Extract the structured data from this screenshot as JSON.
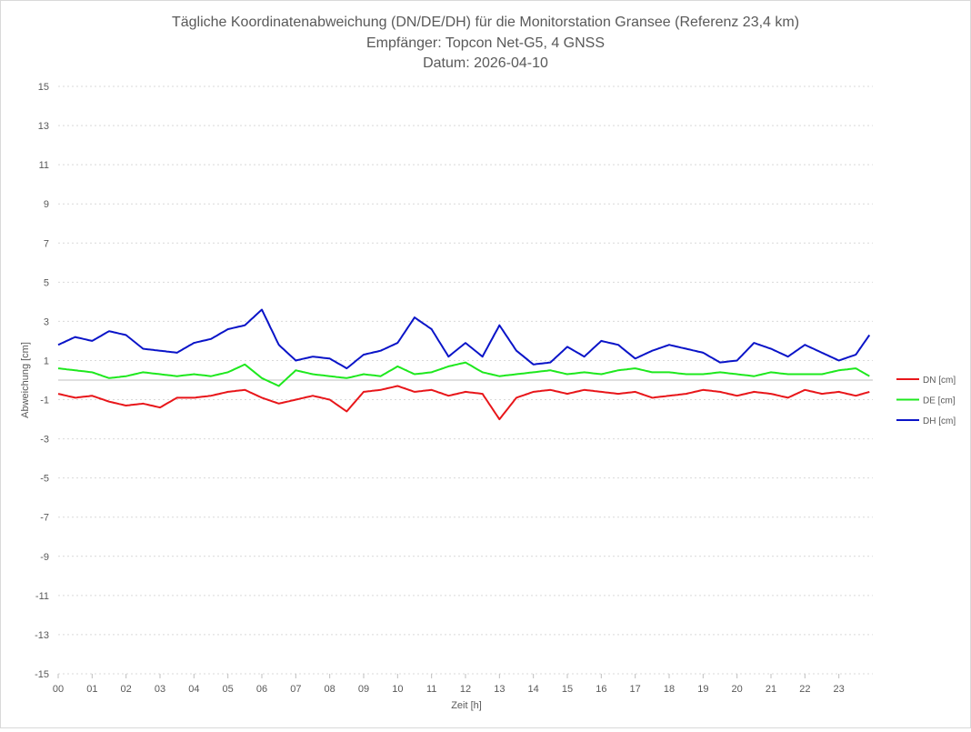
{
  "chart_data": {
    "type": "line",
    "title": [
      "Tägliche Koordinatenabweichung (DN/DE/DH) für die Monitorstation Gransee (Referenz 23,4 km)",
      "Empfänger: Topcon Net-G5, 4 GNSS",
      "Datum: 2026-04-10"
    ],
    "xlabel": "Zeit [h]",
    "ylabel": "Abweichung [cm]",
    "xlim": [
      0,
      24
    ],
    "ylim": [
      -15,
      15
    ],
    "x_ticks": [
      "00",
      "01",
      "02",
      "03",
      "04",
      "05",
      "06",
      "07",
      "08",
      "09",
      "10",
      "11",
      "12",
      "13",
      "14",
      "15",
      "16",
      "17",
      "18",
      "19",
      "20",
      "21",
      "22",
      "23"
    ],
    "y_ticks": [
      15,
      13,
      11,
      9,
      7,
      5,
      3,
      1,
      -1,
      -3,
      -5,
      -7,
      -9,
      -11,
      -13,
      -15
    ],
    "grid": true,
    "legend_position": "right",
    "x_hours": [
      0,
      0.5,
      1,
      1.5,
      2,
      2.5,
      3,
      3.5,
      4,
      4.5,
      5,
      5.5,
      6,
      6.5,
      7,
      7.5,
      8,
      8.5,
      9,
      9.5,
      10,
      10.5,
      11,
      11.5,
      12,
      12.5,
      13,
      13.5,
      14,
      14.5,
      15,
      15.5,
      16,
      16.5,
      17,
      17.5,
      18,
      18.5,
      19,
      19.5,
      20,
      20.5,
      21,
      21.5,
      22,
      22.5,
      23,
      23.5,
      23.9
    ],
    "series": [
      {
        "name": "DN [cm]",
        "color": "#e8161a",
        "values": [
          -0.7,
          -0.9,
          -0.8,
          -1.1,
          -1.3,
          -1.2,
          -1.4,
          -0.9,
          -0.9,
          -0.8,
          -0.6,
          -0.5,
          -0.9,
          -1.2,
          -1.0,
          -0.8,
          -1.0,
          -1.6,
          -0.6,
          -0.5,
          -0.3,
          -0.6,
          -0.5,
          -0.8,
          -0.6,
          -0.7,
          -2.0,
          -0.9,
          -0.6,
          -0.5,
          -0.7,
          -0.5,
          -0.6,
          -0.7,
          -0.6,
          -0.9,
          -0.8,
          -0.7,
          -0.5,
          -0.6,
          -0.8,
          -0.6,
          -0.7,
          -0.9,
          -0.5,
          -0.7,
          -0.6,
          -0.8,
          -0.6
        ]
      },
      {
        "name": "DE [cm]",
        "color": "#1ee81e",
        "values": [
          0.6,
          0.5,
          0.4,
          0.1,
          0.2,
          0.4,
          0.3,
          0.2,
          0.3,
          0.2,
          0.4,
          0.8,
          0.1,
          -0.3,
          0.5,
          0.3,
          0.2,
          0.1,
          0.3,
          0.2,
          0.7,
          0.3,
          0.4,
          0.7,
          0.9,
          0.4,
          0.2,
          0.3,
          0.4,
          0.5,
          0.3,
          0.4,
          0.3,
          0.5,
          0.6,
          0.4,
          0.4,
          0.3,
          0.3,
          0.4,
          0.3,
          0.2,
          0.4,
          0.3,
          0.3,
          0.3,
          0.5,
          0.6,
          0.2
        ]
      },
      {
        "name": "DH [cm]",
        "color": "#0a14c8",
        "values": [
          1.8,
          2.2,
          2.0,
          2.5,
          2.3,
          1.6,
          1.5,
          1.4,
          1.9,
          2.1,
          2.6,
          2.8,
          3.6,
          1.8,
          1.0,
          1.2,
          1.1,
          0.6,
          1.3,
          1.5,
          1.9,
          3.2,
          2.6,
          1.2,
          1.9,
          1.2,
          2.8,
          1.5,
          0.8,
          0.9,
          1.7,
          1.2,
          2.0,
          1.8,
          1.1,
          1.5,
          1.8,
          1.6,
          1.4,
          0.9,
          1.0,
          1.9,
          1.6,
          1.2,
          1.8,
          1.4,
          1.0,
          1.3,
          2.3
        ]
      }
    ]
  }
}
